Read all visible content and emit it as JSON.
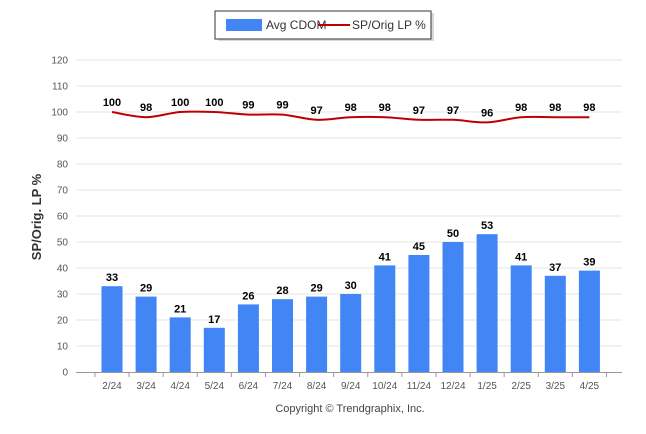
{
  "chart_data": {
    "type": "bar",
    "ylabel": "SP/Orig. LP %",
    "ylim": [
      0,
      120
    ],
    "yticks": [
      0,
      10,
      20,
      30,
      40,
      50,
      60,
      70,
      80,
      90,
      100,
      110,
      120
    ],
    "categories": [
      "2/24",
      "3/24",
      "4/24",
      "5/24",
      "6/24",
      "7/24",
      "8/24",
      "9/24",
      "10/24",
      "11/24",
      "12/24",
      "1/25",
      "2/25",
      "3/25",
      "4/25"
    ],
    "series": [
      {
        "name": "Avg CDOM",
        "kind": "bar",
        "color": "#4285f4",
        "values": [
          33,
          29,
          21,
          17,
          26,
          28,
          29,
          30,
          41,
          45,
          50,
          53,
          41,
          37,
          39
        ]
      },
      {
        "name": "SP/Orig LP %",
        "kind": "line",
        "color": "#c00000",
        "values": [
          100,
          98,
          100,
          100,
          99,
          99,
          97,
          98,
          98,
          97,
          97,
          96,
          98,
          98,
          98
        ]
      }
    ],
    "legend_position": "top-center",
    "grid": true
  },
  "footer": {
    "copyright": "Copyright © Trendgraphix, Inc."
  }
}
